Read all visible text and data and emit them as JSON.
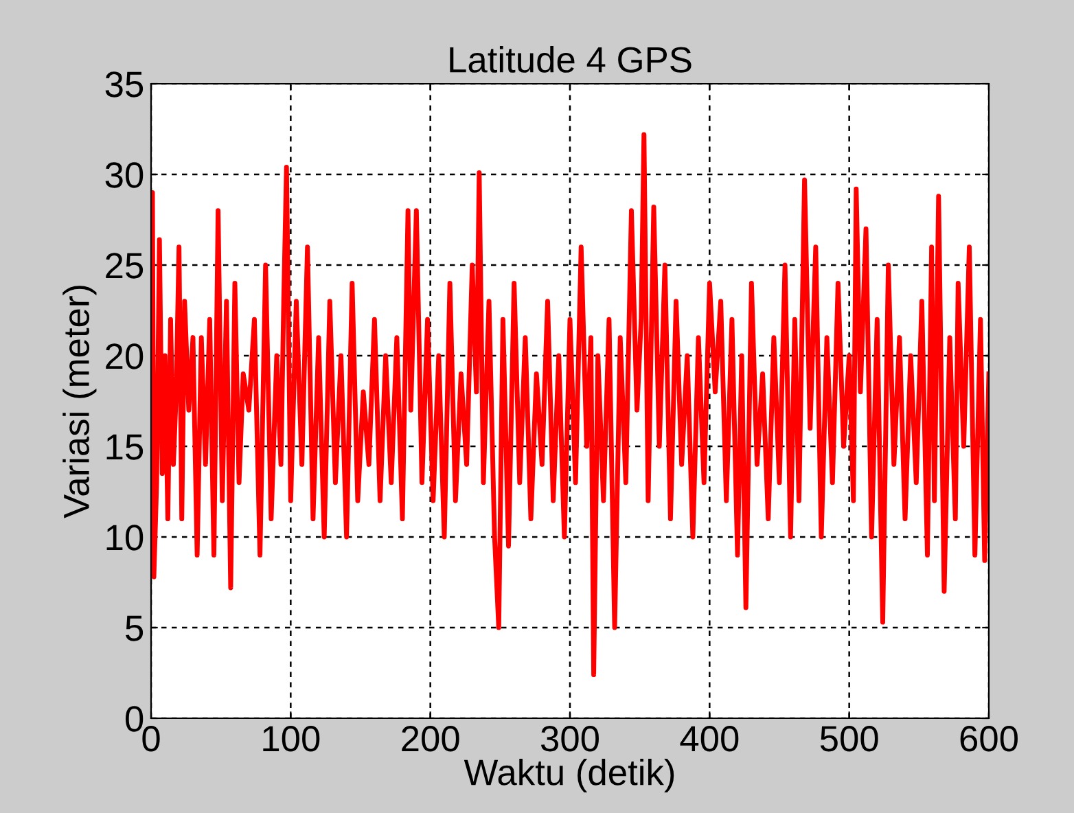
{
  "chart_data": {
    "type": "line",
    "title": "Latitude 4 GPS",
    "xlabel": "Waktu (detik)",
    "ylabel": "Variasi (meter)",
    "xlim": [
      0,
      600
    ],
    "ylim": [
      0,
      35
    ],
    "xticks": [
      0,
      100,
      200,
      300,
      400,
      500,
      600
    ],
    "yticks": [
      0,
      5,
      10,
      15,
      20,
      25,
      30,
      35
    ],
    "grid": true,
    "line_style": "solid",
    "marker": "none",
    "x": [
      0,
      1,
      2,
      4,
      6,
      8,
      10,
      12,
      14,
      16,
      18,
      20,
      22,
      24,
      27,
      30,
      33,
      36,
      39,
      42,
      45,
      48,
      51,
      54,
      57,
      60,
      63,
      66,
      70,
      74,
      78,
      82,
      86,
      90,
      93,
      95,
      97,
      100,
      104,
      108,
      112,
      116,
      120,
      124,
      128,
      132,
      136,
      140,
      144,
      148,
      152,
      156,
      160,
      164,
      168,
      172,
      176,
      180,
      184,
      186,
      190,
      194,
      198,
      202,
      206,
      210,
      214,
      218,
      222,
      226,
      230,
      233,
      235,
      238,
      242,
      246,
      249,
      252,
      256,
      260,
      264,
      268,
      272,
      276,
      280,
      284,
      288,
      292,
      296,
      300,
      304,
      308,
      312,
      315,
      317,
      320,
      324,
      328,
      332,
      336,
      340,
      344,
      348,
      351,
      353,
      356,
      360,
      364,
      368,
      372,
      376,
      380,
      384,
      388,
      392,
      396,
      400,
      404,
      408,
      412,
      416,
      420,
      423,
      426,
      430,
      434,
      438,
      442,
      446,
      450,
      454,
      458,
      461,
      464,
      468,
      472,
      476,
      480,
      484,
      488,
      492,
      496,
      500,
      503,
      505,
      508,
      512,
      516,
      520,
      524,
      528,
      532,
      536,
      540,
      544,
      548,
      552,
      556,
      559,
      561,
      564,
      568,
      572,
      576,
      578,
      582,
      586,
      590,
      594,
      597,
      600
    ],
    "series": [
      {
        "color": "#ff0000",
        "values": [
          24,
          29,
          7.8,
          13,
          26.4,
          13.5,
          20,
          11,
          22,
          14,
          18,
          26,
          11,
          23,
          17,
          21,
          9,
          21,
          14,
          22,
          9,
          28,
          12,
          23,
          7.2,
          24,
          13,
          19,
          17,
          22,
          9,
          25,
          11,
          20,
          14,
          23,
          30.4,
          12,
          23,
          14,
          26,
          11,
          21,
          10,
          23,
          13,
          20,
          10,
          24,
          12,
          18,
          14,
          22,
          12,
          20,
          13,
          21,
          11,
          28,
          17,
          28,
          13,
          22,
          12,
          20,
          10,
          24,
          12,
          19,
          14,
          25,
          18,
          30.1,
          13,
          23,
          10,
          5,
          22,
          9.5,
          24,
          13,
          21,
          11,
          19,
          14,
          23,
          12,
          20,
          10,
          22,
          13,
          26,
          15,
          21,
          2.4,
          20,
          12,
          22,
          5,
          21,
          13,
          28,
          17,
          22,
          32.2,
          12,
          28.2,
          15,
          25,
          11,
          23,
          14,
          20,
          10,
          21,
          13,
          24,
          18,
          23,
          12,
          22,
          9,
          20,
          6.1,
          24,
          14,
          19,
          11,
          21,
          13,
          25,
          10,
          22,
          12,
          29.7,
          16,
          26,
          10,
          21,
          13,
          24,
          15,
          20,
          12,
          29.2,
          18,
          27,
          10,
          22,
          5.3,
          25,
          14,
          21,
          11,
          20,
          13,
          23,
          9,
          26,
          12,
          28.8,
          7,
          21,
          11,
          24,
          15,
          26,
          9,
          22,
          8.7,
          19
        ]
      }
    ]
  }
}
